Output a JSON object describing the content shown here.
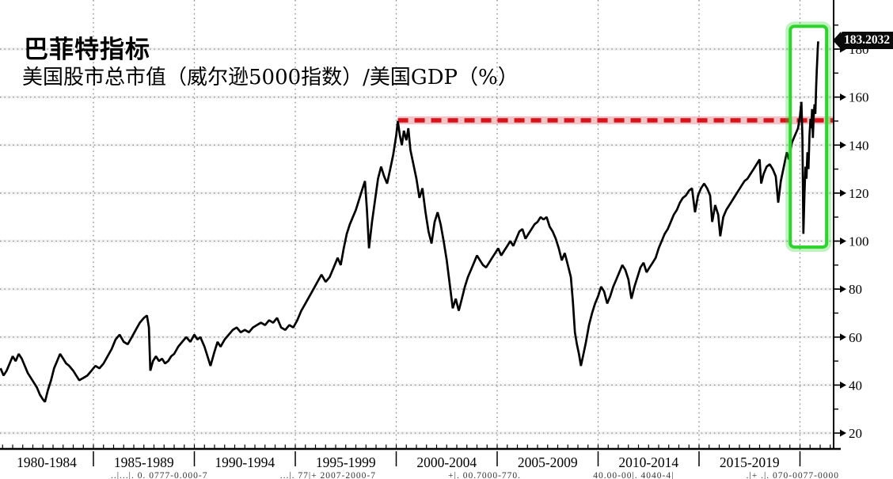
{
  "header": {
    "title": "巴菲特指标",
    "subtitle": "美国股市总市值（威尔逊5000指数）/美国GDP（%）"
  },
  "callout": {
    "value": "183.2032"
  },
  "colors": {
    "line": "#000000",
    "threshold_red": "#d8131c",
    "highlight_green": "#2ed32e",
    "grid": "#8a8a8a",
    "axis": "#000000",
    "background": "#ffffff",
    "callout_bg": "#0a0a0a",
    "callout_text": "#ffffff"
  },
  "y_axis": {
    "major_ticks": [
      20,
      40,
      60,
      80,
      100,
      120,
      140,
      160,
      180
    ],
    "minor_tick_step": 10,
    "minor_tick_range": [
      30,
      190
    ]
  },
  "x_axis": {
    "labels": [
      "1980-1984",
      "1985-1989",
      "1990-1994",
      "1995-1999",
      "2000-2004",
      "2005-2009",
      "2010-2014",
      "2015-2019"
    ],
    "boundary_years": [
      1985,
      1990,
      1995,
      2000,
      2005,
      2010,
      2015,
      2020
    ]
  },
  "footer_fragments": [
    "..|...|. 0. 0777-0.000-7",
    "...|. 77|+ 2007-2000-7",
    "+|. 00.7000-770.",
    "40.00-00|. 4040-4|",
    ".|+ .|. 070-0077-0000"
  ],
  "chart_data": {
    "type": "line",
    "title": "巴菲特指标",
    "subtitle": "美国股市总市值（威尔逊5000指数）/美国GDP（%）",
    "xlabel": "",
    "ylabel": "%",
    "xlim": [
      1980.37,
      2021.7
    ],
    "ylim": [
      15,
      195
    ],
    "grid": "dotted-major",
    "legend": "none",
    "last_value_label": "183.2032",
    "threshold_line": {
      "value": 150.3,
      "start_year": 2000.08,
      "end": "right-axis",
      "style": "dashed",
      "color": "#d8131c"
    },
    "highlight_box": {
      "start_year": 2019.52,
      "end_year": 2021.32,
      "top_value": 189.5,
      "bottom_value": 97.5,
      "color": "#2ed32e"
    },
    "points": [
      [
        1980.4,
        47
      ],
      [
        1980.55,
        44
      ],
      [
        1980.7,
        46
      ],
      [
        1980.85,
        49
      ],
      [
        1981.0,
        52
      ],
      [
        1981.15,
        50
      ],
      [
        1981.3,
        53
      ],
      [
        1981.45,
        51
      ],
      [
        1981.6,
        48
      ],
      [
        1981.75,
        45
      ],
      [
        1981.9,
        43
      ],
      [
        1982.05,
        41
      ],
      [
        1982.2,
        39
      ],
      [
        1982.35,
        36
      ],
      [
        1982.5,
        34
      ],
      [
        1982.6,
        33
      ],
      [
        1982.75,
        38
      ],
      [
        1982.9,
        42
      ],
      [
        1983.05,
        47
      ],
      [
        1983.2,
        50
      ],
      [
        1983.35,
        53
      ],
      [
        1983.5,
        51
      ],
      [
        1983.65,
        49
      ],
      [
        1983.8,
        48
      ],
      [
        1984.0,
        46
      ],
      [
        1984.15,
        44
      ],
      [
        1984.3,
        42
      ],
      [
        1984.5,
        43
      ],
      [
        1984.7,
        44
      ],
      [
        1984.9,
        46
      ],
      [
        1985.1,
        48
      ],
      [
        1985.3,
        47
      ],
      [
        1985.5,
        49
      ],
      [
        1985.7,
        52
      ],
      [
        1985.9,
        55
      ],
      [
        1986.1,
        59
      ],
      [
        1986.3,
        61
      ],
      [
        1986.5,
        58
      ],
      [
        1986.7,
        57
      ],
      [
        1986.9,
        60
      ],
      [
        1987.1,
        63
      ],
      [
        1987.3,
        66
      ],
      [
        1987.5,
        68
      ],
      [
        1987.65,
        69
      ],
      [
        1987.75,
        64
      ],
      [
        1987.82,
        46
      ],
      [
        1987.95,
        50
      ],
      [
        1988.1,
        52
      ],
      [
        1988.25,
        50
      ],
      [
        1988.4,
        51
      ],
      [
        1988.55,
        49
      ],
      [
        1988.7,
        50
      ],
      [
        1988.85,
        52
      ],
      [
        1989.0,
        53
      ],
      [
        1989.2,
        56
      ],
      [
        1989.4,
        58
      ],
      [
        1989.6,
        60
      ],
      [
        1989.8,
        58
      ],
      [
        1990.0,
        61
      ],
      [
        1990.15,
        59
      ],
      [
        1990.3,
        60
      ],
      [
        1990.5,
        56
      ],
      [
        1990.65,
        52
      ],
      [
        1990.8,
        48
      ],
      [
        1991.0,
        54
      ],
      [
        1991.15,
        58
      ],
      [
        1991.3,
        56
      ],
      [
        1991.5,
        59
      ],
      [
        1991.7,
        61
      ],
      [
        1991.9,
        63
      ],
      [
        1992.1,
        64
      ],
      [
        1992.3,
        62
      ],
      [
        1992.5,
        63
      ],
      [
        1992.7,
        62
      ],
      [
        1992.9,
        64
      ],
      [
        1993.1,
        65
      ],
      [
        1993.3,
        66
      ],
      [
        1993.5,
        65
      ],
      [
        1993.7,
        67
      ],
      [
        1993.9,
        66
      ],
      [
        1994.1,
        68
      ],
      [
        1994.3,
        64
      ],
      [
        1994.5,
        63
      ],
      [
        1994.7,
        65
      ],
      [
        1994.9,
        64
      ],
      [
        1995.1,
        67
      ],
      [
        1995.3,
        71
      ],
      [
        1995.5,
        74
      ],
      [
        1995.7,
        77
      ],
      [
        1995.9,
        80
      ],
      [
        1996.1,
        83
      ],
      [
        1996.3,
        86
      ],
      [
        1996.5,
        83
      ],
      [
        1996.7,
        85
      ],
      [
        1996.9,
        89
      ],
      [
        1997.1,
        93
      ],
      [
        1997.25,
        90
      ],
      [
        1997.4,
        97
      ],
      [
        1997.55,
        103
      ],
      [
        1997.7,
        107
      ],
      [
        1997.85,
        110
      ],
      [
        1998.0,
        113
      ],
      [
        1998.15,
        117
      ],
      [
        1998.3,
        121
      ],
      [
        1998.45,
        125
      ],
      [
        1998.55,
        113
      ],
      [
        1998.65,
        97
      ],
      [
        1998.8,
        108
      ],
      [
        1998.95,
        117
      ],
      [
        1999.1,
        126
      ],
      [
        1999.25,
        131
      ],
      [
        1999.4,
        127
      ],
      [
        1999.55,
        124
      ],
      [
        1999.7,
        130
      ],
      [
        1999.85,
        136
      ],
      [
        2000.0,
        144
      ],
      [
        2000.08,
        150
      ],
      [
        2000.18,
        144
      ],
      [
        2000.28,
        140
      ],
      [
        2000.38,
        146
      ],
      [
        2000.5,
        142
      ],
      [
        2000.6,
        147
      ],
      [
        2000.7,
        138
      ],
      [
        2000.85,
        132
      ],
      [
        2001.0,
        126
      ],
      [
        2001.15,
        118
      ],
      [
        2001.3,
        122
      ],
      [
        2001.45,
        112
      ],
      [
        2001.6,
        104
      ],
      [
        2001.75,
        99
      ],
      [
        2001.9,
        108
      ],
      [
        2002.05,
        112
      ],
      [
        2002.2,
        107
      ],
      [
        2002.35,
        100
      ],
      [
        2002.5,
        92
      ],
      [
        2002.65,
        82
      ],
      [
        2002.8,
        72
      ],
      [
        2002.95,
        76
      ],
      [
        2003.1,
        71
      ],
      [
        2003.25,
        76
      ],
      [
        2003.4,
        81
      ],
      [
        2003.55,
        85
      ],
      [
        2003.7,
        88
      ],
      [
        2003.85,
        91
      ],
      [
        2004.0,
        94
      ],
      [
        2004.15,
        92
      ],
      [
        2004.3,
        90
      ],
      [
        2004.45,
        89
      ],
      [
        2004.6,
        91
      ],
      [
        2004.75,
        93
      ],
      [
        2004.9,
        95
      ],
      [
        2005.05,
        97
      ],
      [
        2005.2,
        94
      ],
      [
        2005.35,
        96
      ],
      [
        2005.5,
        98
      ],
      [
        2005.65,
        100
      ],
      [
        2005.8,
        98
      ],
      [
        2005.95,
        101
      ],
      [
        2006.1,
        104
      ],
      [
        2006.25,
        105
      ],
      [
        2006.4,
        101
      ],
      [
        2006.55,
        103
      ],
      [
        2006.7,
        105
      ],
      [
        2006.85,
        107
      ],
      [
        2007.0,
        108
      ],
      [
        2007.15,
        110
      ],
      [
        2007.3,
        109
      ],
      [
        2007.45,
        110
      ],
      [
        2007.6,
        106
      ],
      [
        2007.75,
        104
      ],
      [
        2007.9,
        101
      ],
      [
        2008.05,
        97
      ],
      [
        2008.2,
        92
      ],
      [
        2008.35,
        95
      ],
      [
        2008.5,
        90
      ],
      [
        2008.65,
        85
      ],
      [
        2008.75,
        75
      ],
      [
        2008.85,
        62
      ],
      [
        2008.95,
        57
      ],
      [
        2009.05,
        53
      ],
      [
        2009.15,
        48
      ],
      [
        2009.25,
        52
      ],
      [
        2009.4,
        58
      ],
      [
        2009.55,
        65
      ],
      [
        2009.7,
        70
      ],
      [
        2009.85,
        74
      ],
      [
        2010.0,
        77
      ],
      [
        2010.15,
        81
      ],
      [
        2010.3,
        79
      ],
      [
        2010.45,
        74
      ],
      [
        2010.6,
        77
      ],
      [
        2010.75,
        81
      ],
      [
        2010.9,
        84
      ],
      [
        2011.05,
        87
      ],
      [
        2011.2,
        90
      ],
      [
        2011.35,
        88
      ],
      [
        2011.5,
        84
      ],
      [
        2011.65,
        76
      ],
      [
        2011.8,
        81
      ],
      [
        2011.95,
        85
      ],
      [
        2012.1,
        89
      ],
      [
        2012.25,
        91
      ],
      [
        2012.4,
        87
      ],
      [
        2012.55,
        89
      ],
      [
        2012.7,
        91
      ],
      [
        2012.85,
        93
      ],
      [
        2013.0,
        97
      ],
      [
        2013.15,
        100
      ],
      [
        2013.3,
        103
      ],
      [
        2013.45,
        105
      ],
      [
        2013.6,
        108
      ],
      [
        2013.75,
        111
      ],
      [
        2013.9,
        113
      ],
      [
        2014.05,
        116
      ],
      [
        2014.2,
        118
      ],
      [
        2014.35,
        119
      ],
      [
        2014.5,
        121
      ],
      [
        2014.65,
        122
      ],
      [
        2014.8,
        112
      ],
      [
        2014.95,
        119
      ],
      [
        2015.1,
        122
      ],
      [
        2015.25,
        124
      ],
      [
        2015.4,
        122
      ],
      [
        2015.55,
        119
      ],
      [
        2015.65,
        108
      ],
      [
        2015.8,
        115
      ],
      [
        2015.95,
        111
      ],
      [
        2016.05,
        102
      ],
      [
        2016.2,
        110
      ],
      [
        2016.35,
        113
      ],
      [
        2016.5,
        115
      ],
      [
        2016.65,
        117
      ],
      [
        2016.8,
        119
      ],
      [
        2016.95,
        121
      ],
      [
        2017.1,
        123
      ],
      [
        2017.25,
        125
      ],
      [
        2017.4,
        126
      ],
      [
        2017.55,
        128
      ],
      [
        2017.7,
        130
      ],
      [
        2017.85,
        132
      ],
      [
        2018.0,
        134
      ],
      [
        2018.08,
        124
      ],
      [
        2018.2,
        128
      ],
      [
        2018.35,
        131
      ],
      [
        2018.5,
        132
      ],
      [
        2018.65,
        130
      ],
      [
        2018.8,
        127
      ],
      [
        2018.92,
        116
      ],
      [
        2019.05,
        125
      ],
      [
        2019.2,
        131
      ],
      [
        2019.35,
        137
      ],
      [
        2019.45,
        134
      ],
      [
        2019.6,
        141
      ],
      [
        2019.75,
        144
      ],
      [
        2019.9,
        147
      ],
      [
        2020.0,
        152
      ],
      [
        2020.07,
        158
      ],
      [
        2020.12,
        143
      ],
      [
        2020.17,
        103
      ],
      [
        2020.22,
        119
      ],
      [
        2020.27,
        131
      ],
      [
        2020.32,
        126
      ],
      [
        2020.37,
        137
      ],
      [
        2020.42,
        130
      ],
      [
        2020.47,
        144
      ],
      [
        2020.52,
        151
      ],
      [
        2020.56,
        147
      ],
      [
        2020.6,
        155
      ],
      [
        2020.64,
        143
      ],
      [
        2020.68,
        152
      ],
      [
        2020.72,
        157
      ],
      [
        2020.76,
        153
      ],
      [
        2020.8,
        164
      ],
      [
        2020.83,
        171
      ],
      [
        2020.86,
        176
      ],
      [
        2020.88,
        180
      ],
      [
        2020.9,
        183.2
      ]
    ]
  }
}
